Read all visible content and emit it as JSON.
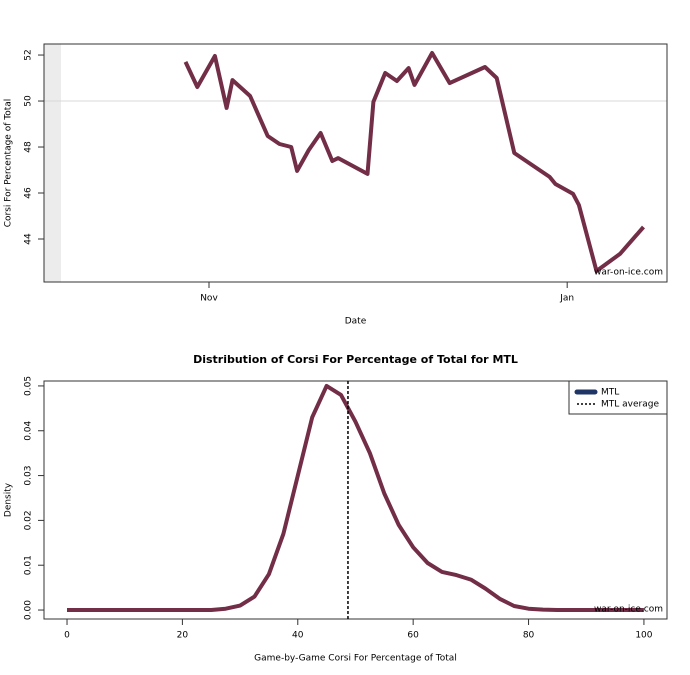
{
  "chart_data": [
    {
      "type": "line",
      "x_label": "Date",
      "y_label": "Corsi For Percentage of Total",
      "annotation": "war-on-ice.com",
      "x": [
        27,
        29,
        32,
        34,
        35,
        38,
        41,
        43,
        45,
        46,
        48,
        50,
        52,
        53,
        58,
        59,
        61,
        63,
        65,
        66,
        69,
        72,
        78,
        80,
        83,
        89,
        90,
        93,
        94,
        97,
        101,
        105
      ],
      "series": [
        {
          "color": "#722d47",
          "values": [
            51.7,
            50.61,
            51.96,
            49.7,
            50.91,
            50.22,
            48.48,
            48.13,
            48.0,
            46.96,
            47.87,
            48.61,
            47.39,
            47.52,
            46.83,
            49.96,
            51.22,
            50.87,
            51.43,
            50.7,
            52.09,
            50.78,
            51.48,
            51.0,
            47.74,
            46.7,
            46.39,
            45.96,
            45.48,
            42.61,
            43.35,
            44.52
          ]
        }
      ],
      "xlim": [
        2.9,
        109
      ],
      "xticks": [
        {
          "value": 31,
          "label": "Nov"
        },
        {
          "value": 92,
          "label": "Jan"
        }
      ],
      "ylim": [
        42.13,
        52.48
      ],
      "yticks": [
        44,
        46,
        48,
        50,
        52
      ],
      "hlines": [
        50
      ]
    },
    {
      "type": "line",
      "title": "Distribution of Corsi For Percentage of Total for MTL",
      "x_label": "Game-by-Game Corsi For Percentage of Total",
      "y_label": "Density",
      "annotation": "war-on-ice.com",
      "x": [
        0,
        5,
        10,
        15,
        20,
        25,
        27.5,
        30,
        32.5,
        35,
        37.5,
        40,
        42.5,
        45,
        47.5,
        50,
        52.5,
        55,
        57.5,
        60,
        62.5,
        65,
        67.5,
        70,
        72.5,
        75,
        77.5,
        80,
        82.5,
        85,
        90,
        95,
        100
      ],
      "series": [
        {
          "name": "MTL",
          "color": "#722d47",
          "legend_color": "#1f3566",
          "values": [
            0,
            0,
            0,
            0,
            0,
            0,
            0.0003,
            0.001,
            0.003,
            0.008,
            0.017,
            0.03,
            0.043,
            0.05,
            0.048,
            0.042,
            0.035,
            0.026,
            0.019,
            0.014,
            0.0105,
            0.0085,
            0.0078,
            0.0068,
            0.0048,
            0.0025,
            0.0009,
            0.0003,
            0.0001,
            0,
            0,
            0,
            0
          ]
        }
      ],
      "average": {
        "name": "MTL average",
        "value": 48.7,
        "color": "#000000"
      },
      "legend": "top-right",
      "legend_text_color": "#b03a3a",
      "xlim": [
        -3.99,
        104
      ],
      "xticks": [
        0,
        20,
        40,
        60,
        80,
        100
      ],
      "ylim": [
        -0.002,
        0.0511
      ],
      "yticks": [
        {
          "value": 0,
          "label": "0.00"
        },
        0.01,
        0.02,
        0.03,
        0.04,
        0.05
      ]
    }
  ]
}
